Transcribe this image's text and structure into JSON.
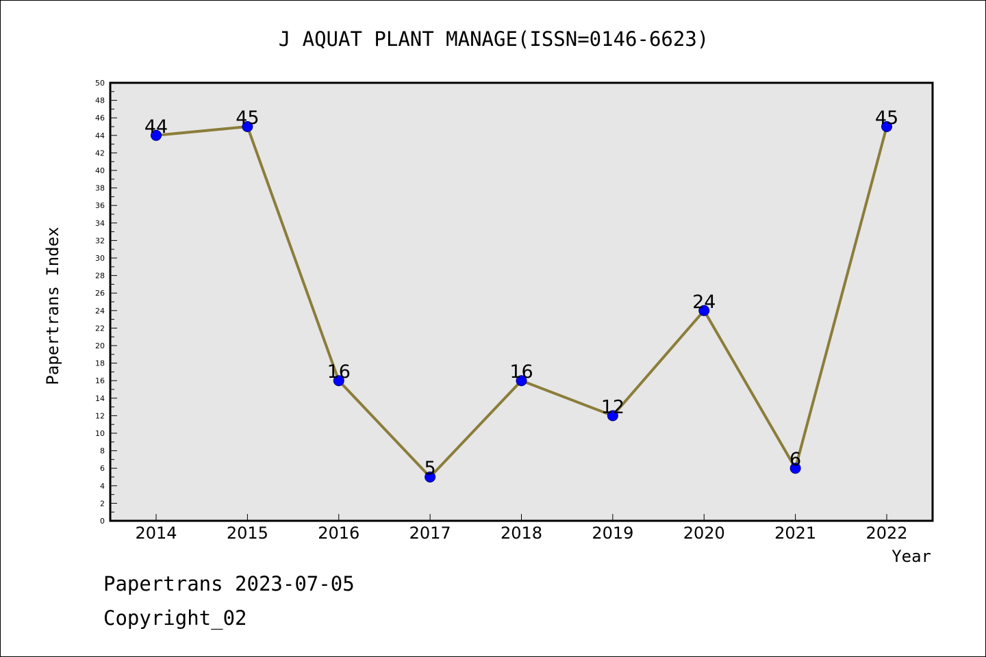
{
  "chart_data": {
    "type": "line",
    "title": "J AQUAT PLANT MANAGE(ISSN=0146-6623)",
    "xlabel": "Year",
    "ylabel": "Papertrans Index",
    "categories": [
      "2014",
      "2015",
      "2016",
      "2017",
      "2018",
      "2019",
      "2020",
      "2021",
      "2022"
    ],
    "series": [
      {
        "values": [
          44,
          45,
          16,
          5,
          16,
          12,
          24,
          6,
          45
        ]
      }
    ],
    "ylim": [
      0,
      50
    ],
    "y_major_step": 2,
    "y_minor_step": 1,
    "grid": false,
    "data_labels": true,
    "colors": {
      "plot_background": "#e6e6e6",
      "line": "#8b7d3a",
      "marker": "#0000ff",
      "marker_edge": "#000080"
    }
  },
  "footer": {
    "date_text": "Papertrans 2023-07-05",
    "copyright_text": "Copyright_02"
  }
}
